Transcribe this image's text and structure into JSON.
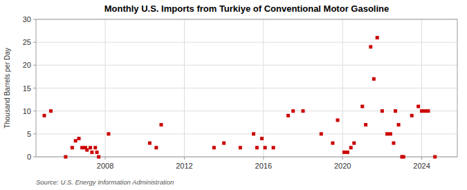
{
  "chart_data": {
    "type": "scatter",
    "title": "Monthly U.S. Imports from Turkiye of Conventional Motor Gasoline",
    "y_label": "Thousand Barrels per Day",
    "annotation": "Source: U.S. Energy Information Administration",
    "color": "#cc0000",
    "marker": "square",
    "grid": true,
    "xlim": [
      2004.5,
      2025.8
    ],
    "xticks": [
      2008,
      2012,
      2016,
      2020,
      2024
    ],
    "ylim": [
      0,
      30
    ],
    "yticks": [
      0,
      5,
      10,
      15,
      20,
      25,
      30
    ],
    "x": [
      2004.92,
      2005.25,
      2006.0,
      2006.33,
      2006.5,
      2006.67,
      2006.83,
      2007.0,
      2007.08,
      2007.25,
      2007.33,
      2007.5,
      2007.58,
      2007.67,
      2008.17,
      2010.25,
      2010.58,
      2010.83,
      2013.5,
      2014.0,
      2014.83,
      2015.5,
      2015.67,
      2015.92,
      2016.08,
      2016.5,
      2017.25,
      2017.5,
      2018.0,
      2018.92,
      2019.5,
      2019.75,
      2020.08,
      2020.25,
      2020.42,
      2020.58,
      2021.0,
      2021.17,
      2021.42,
      2021.58,
      2021.75,
      2022.0,
      2022.25,
      2022.42,
      2022.58,
      2022.67,
      2022.83,
      2023.0,
      2023.08,
      2023.5,
      2023.83,
      2024.0,
      2024.17,
      2024.33,
      2024.67
    ],
    "values": [
      9.0,
      10.0,
      0.0,
      2.0,
      3.5,
      4.0,
      2.0,
      2.0,
      1.5,
      2.0,
      1.0,
      2.0,
      1.0,
      0.0,
      5.0,
      3.0,
      2.0,
      7.0,
      2.0,
      3.0,
      2.0,
      5.0,
      2.0,
      4.0,
      2.0,
      2.0,
      9.0,
      10.0,
      10.0,
      5.0,
      3.0,
      8.0,
      1.0,
      1.0,
      2.0,
      3.0,
      11.0,
      7.0,
      24.0,
      17.0,
      26.0,
      10.0,
      5.0,
      5.0,
      3.0,
      10.0,
      7.0,
      0.0,
      0.0,
      9.0,
      11.0,
      10.0,
      10.0,
      10.0,
      0.0
    ]
  }
}
